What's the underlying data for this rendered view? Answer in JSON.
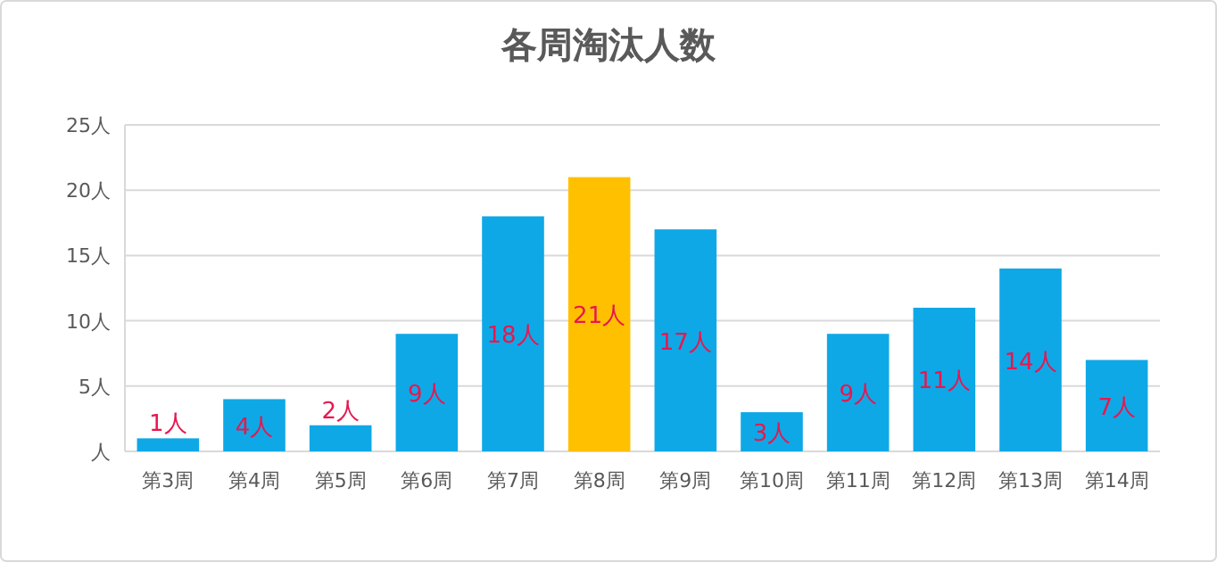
{
  "chart_data": {
    "type": "bar",
    "title": "各周淘汰人数",
    "categories": [
      "第3周",
      "第4周",
      "第5周",
      "第6周",
      "第7周",
      "第8周",
      "第9周",
      "第10周",
      "第11周",
      "第12周",
      "第13周",
      "第14周"
    ],
    "values": [
      1,
      4,
      2,
      9,
      18,
      21,
      17,
      3,
      9,
      11,
      14,
      7
    ],
    "colors": [
      "#0fa8e6",
      "#0fa8e6",
      "#0fa8e6",
      "#0fa8e6",
      "#0fa8e6",
      "#ffc000",
      "#0fa8e6",
      "#0fa8e6",
      "#0fa8e6",
      "#0fa8e6",
      "#0fa8e6",
      "#0fa8e6"
    ],
    "value_labels": [
      "1人",
      "4人",
      "2人",
      "9人",
      "18人",
      "21人",
      "17人",
      "3人",
      "9人",
      "11人",
      "14人",
      "7人"
    ],
    "ylim": [
      0,
      25
    ],
    "yticks": [
      {
        "value": 0,
        "label": "人"
      },
      {
        "value": 5,
        "label": "5人"
      },
      {
        "value": 10,
        "label": "10人"
      },
      {
        "value": 15,
        "label": "15人"
      },
      {
        "value": 20,
        "label": "20人"
      },
      {
        "value": 25,
        "label": "25人"
      }
    ],
    "grid": "y"
  }
}
